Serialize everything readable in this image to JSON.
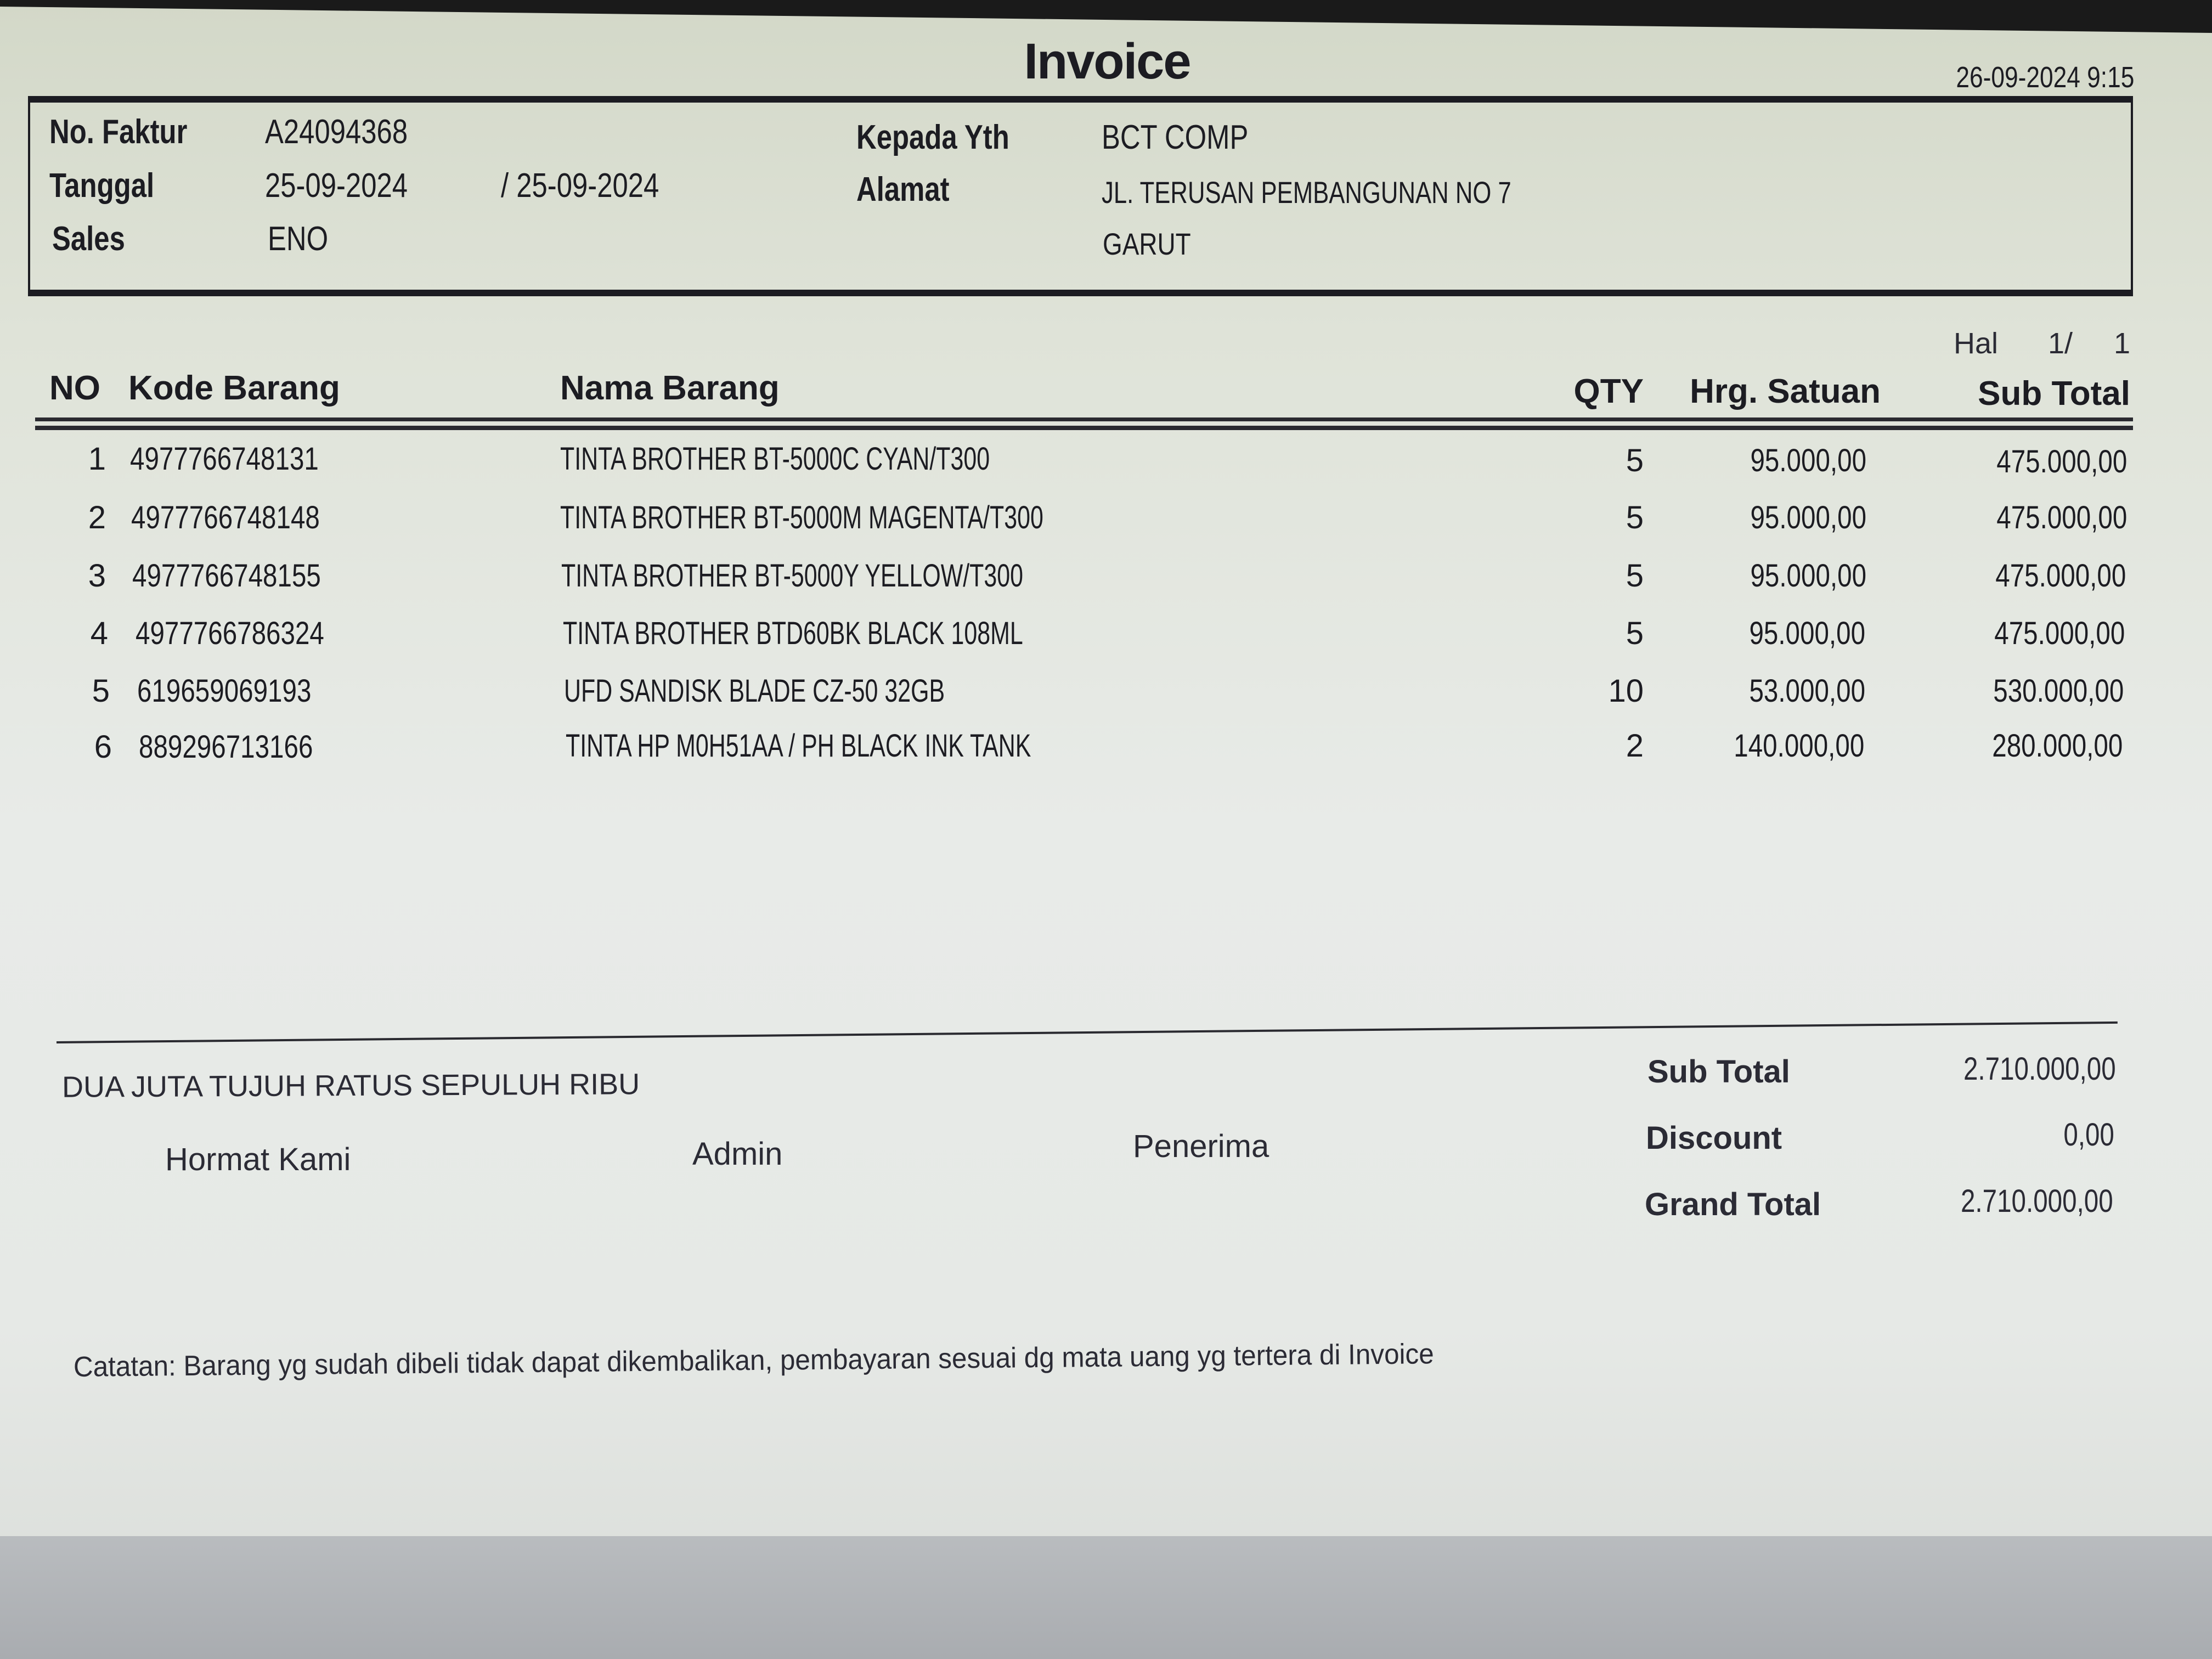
{
  "header": {
    "title": "Invoice",
    "printed_at": "26-09-2024 9:15"
  },
  "info": {
    "no_faktur_label": "No. Faktur",
    "no_faktur": "A24094368",
    "tanggal_label": "Tanggal",
    "tanggal": "25-09-2024",
    "tanggal_due": "/ 25-09-2024",
    "sales_label": "Sales",
    "sales": "ENO",
    "kepada_label": "Kepada Yth",
    "kepada": "BCT COMP",
    "alamat_label": "Alamat",
    "alamat_1": "JL. TERUSAN PEMBANGUNAN NO 7",
    "alamat_2": "GARUT"
  },
  "page": {
    "label": "Hal",
    "current": "1/",
    "total": "1"
  },
  "table": {
    "columns": [
      "NO",
      "Kode Barang",
      "Nama Barang",
      "QTY",
      "Hrg. Satuan",
      "Sub Total"
    ],
    "rows": [
      {
        "no": "1",
        "kode": "4977766748131",
        "nama": "TINTA BROTHER BT-5000C CYAN/T300",
        "qty": "5",
        "harga": "95.000,00",
        "subtotal": "475.000,00"
      },
      {
        "no": "2",
        "kode": "4977766748148",
        "nama": "TINTA BROTHER BT-5000M MAGENTA/T300",
        "qty": "5",
        "harga": "95.000,00",
        "subtotal": "475.000,00"
      },
      {
        "no": "3",
        "kode": "4977766748155",
        "nama": "TINTA BROTHER BT-5000Y YELLOW/T300",
        "qty": "5",
        "harga": "95.000,00",
        "subtotal": "475.000,00"
      },
      {
        "no": "4",
        "kode": "4977766786324",
        "nama": "TINTA BROTHER BTD60BK BLACK 108ML",
        "qty": "5",
        "harga": "95.000,00",
        "subtotal": "475.000,00"
      },
      {
        "no": "5",
        "kode": "619659069193",
        "nama": "UFD SANDISK BLADE CZ-50 32GB",
        "qty": "10",
        "harga": "53.000,00",
        "subtotal": "530.000,00"
      },
      {
        "no": "6",
        "kode": "889296713166",
        "nama": "TINTA HP M0H51AA / PH BLACK INK TANK",
        "qty": "2",
        "harga": "140.000,00",
        "subtotal": "280.000,00"
      }
    ]
  },
  "footer": {
    "terbilang": "DUA JUTA TUJUH RATUS SEPULUH RIBU",
    "sign_hormat": "Hormat Kami",
    "sign_admin": "Admin",
    "sign_penerima": "Penerima",
    "subtotal_label": "Sub Total",
    "subtotal": "2.710.000,00",
    "discount_label": "Discount",
    "discount": "0,00",
    "grandtotal_label": "Grand Total",
    "grandtotal": "2.710.000,00",
    "catatan": "Catatan: Barang yg sudah dibeli tidak dapat dikembalikan, pembayaran sesuai dg mata uang yg tertera di Invoice"
  }
}
